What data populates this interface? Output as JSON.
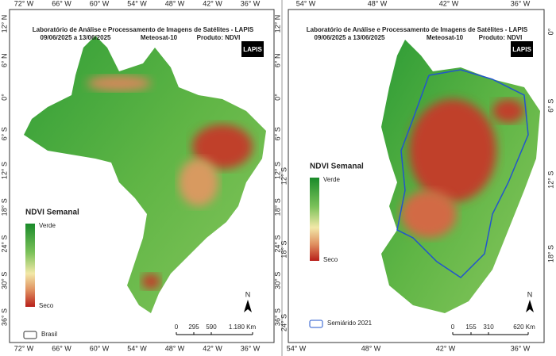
{
  "panels": [
    {
      "title": "Laboratório de Análise e Processamento de Imagens de Satélites - LAPIS",
      "period": "09/06/2025 a 13/06/2025",
      "satellite": "Meteosat-10",
      "product": "Produto: NDVI",
      "logo": "LAPIS",
      "legend": {
        "title": "NDVI Semanal",
        "top": "Verde",
        "bottom": "Seco"
      },
      "boundary_legend": "Brasil",
      "north": "N",
      "scale": [
        "0",
        "295",
        "590",
        "1.180 Km"
      ],
      "lon_labels_top": [
        "72° W",
        "66° W",
        "60° W",
        "54° W",
        "48° W",
        "42° W",
        "36° W"
      ],
      "lon_labels_bottom": [
        "72° W",
        "66° W",
        "60° W",
        "54° W",
        "48° W",
        "42° W",
        "36° W"
      ],
      "lat_labels_left": [
        "12° N",
        "6° N",
        "0°",
        "6° S",
        "12° S",
        "18° S",
        "24° S",
        "30° S",
        "36° S"
      ],
      "lat_labels_right": [
        "12° N",
        "6° N",
        "0°",
        "6° S",
        "12° S",
        "18° S",
        "24° S",
        "30° S",
        "36° S"
      ]
    },
    {
      "title": "Laboratório de Análise e Processamento de Imagens de Satélites - LAPIS",
      "period": "09/06/2025 a 13/06/2025",
      "satellite": "Meteosat-10",
      "product": "Produto: NDVI",
      "logo": "LAPIS",
      "legend": {
        "title": "NDVI Semanal",
        "top": "Verde",
        "bottom": "Seco"
      },
      "boundary_legend": "Semiárido 2021",
      "north": "N",
      "scale": [
        "0",
        "155",
        "310",
        "620 Km"
      ],
      "lon_labels_top": [
        "54° W",
        "48° W",
        "42° W",
        "36° W"
      ],
      "lon_labels_bottom": [
        "54° W",
        "48° W",
        "42° W",
        "36° W"
      ],
      "lat_labels_left": [
        "12° S",
        "18° S",
        "24° S"
      ],
      "lat_labels_right": [
        "0°",
        "6° S",
        "12° S",
        "18° S"
      ]
    }
  ]
}
